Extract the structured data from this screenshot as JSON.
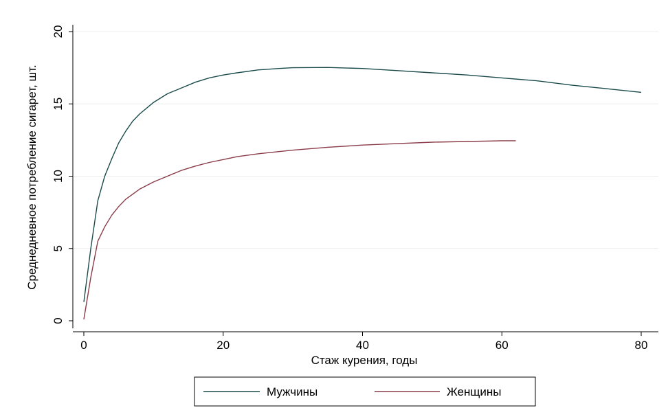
{
  "chart_data": {
    "type": "line",
    "xlabel": "Стаж курения, годы",
    "ylabel": "Среднедневное потребление сигарет, шт.",
    "xlim": [
      0,
      80
    ],
    "ylim": [
      0,
      20
    ],
    "x_ticks": [
      0,
      20,
      40,
      60,
      80
    ],
    "y_ticks": [
      0,
      5,
      10,
      15,
      20
    ],
    "grid": "horizontal",
    "legend_position": "bottom",
    "series": [
      {
        "name": "Мужчины",
        "color": "#1a4a4a",
        "points": [
          [
            0,
            1.3
          ],
          [
            1,
            5.0
          ],
          [
            2,
            8.3
          ],
          [
            3,
            10.0
          ],
          [
            4,
            11.2
          ],
          [
            5,
            12.3
          ],
          [
            6,
            13.1
          ],
          [
            7,
            13.8
          ],
          [
            8,
            14.3
          ],
          [
            10,
            15.1
          ],
          [
            12,
            15.7
          ],
          [
            14,
            16.1
          ],
          [
            16,
            16.5
          ],
          [
            18,
            16.8
          ],
          [
            20,
            17.0
          ],
          [
            22,
            17.15
          ],
          [
            25,
            17.35
          ],
          [
            28,
            17.45
          ],
          [
            30,
            17.5
          ],
          [
            35,
            17.52
          ],
          [
            40,
            17.45
          ],
          [
            45,
            17.3
          ],
          [
            50,
            17.15
          ],
          [
            55,
            17.0
          ],
          [
            60,
            16.8
          ],
          [
            65,
            16.6
          ],
          [
            70,
            16.3
          ],
          [
            75,
            16.05
          ],
          [
            80,
            15.8
          ]
        ]
      },
      {
        "name": "Женщины",
        "color": "#8a3a48",
        "points": [
          [
            0,
            0.1
          ],
          [
            1,
            3.0
          ],
          [
            2,
            5.5
          ],
          [
            3,
            6.5
          ],
          [
            4,
            7.3
          ],
          [
            5,
            7.9
          ],
          [
            6,
            8.4
          ],
          [
            8,
            9.1
          ],
          [
            10,
            9.6
          ],
          [
            12,
            10.0
          ],
          [
            14,
            10.4
          ],
          [
            16,
            10.7
          ],
          [
            18,
            10.95
          ],
          [
            20,
            11.15
          ],
          [
            22,
            11.35
          ],
          [
            25,
            11.55
          ],
          [
            28,
            11.7
          ],
          [
            30,
            11.8
          ],
          [
            35,
            12.0
          ],
          [
            40,
            12.15
          ],
          [
            45,
            12.25
          ],
          [
            50,
            12.35
          ],
          [
            55,
            12.4
          ],
          [
            60,
            12.45
          ],
          [
            62,
            12.45
          ]
        ]
      }
    ]
  }
}
